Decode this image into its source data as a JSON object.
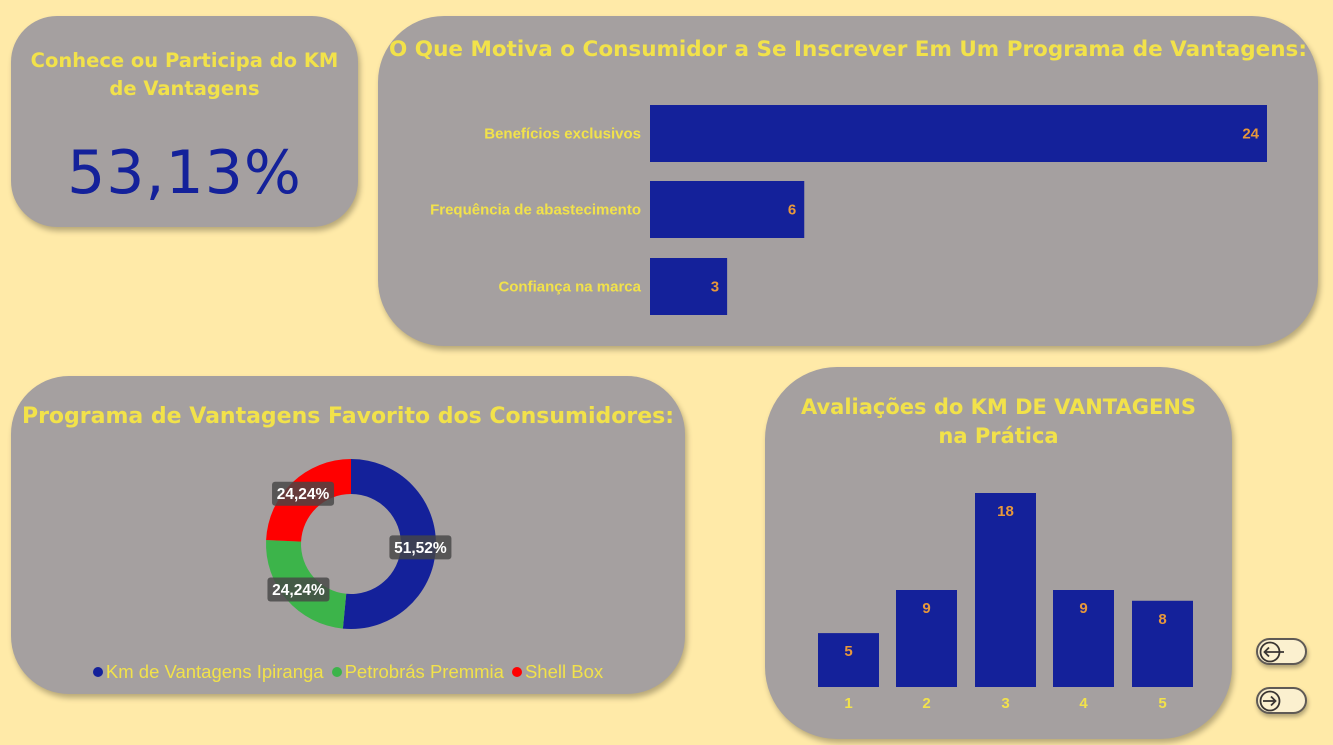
{
  "kpi": {
    "title": "Conhece ou Participa do KM de Vantagens",
    "value": "53,13%"
  },
  "motivation": {
    "title": "O Que Motiva o Consumidor a Se Inscrever Em Um Programa de Vantagens:"
  },
  "favorite": {
    "title": "Programa de Vantagens Favorito dos Consumidores:",
    "legend": [
      {
        "label": "Km de Vantagens Ipiranga",
        "color": "#14219a"
      },
      {
        "label": "Petrobrás Premmia",
        "color": "#3cb44a"
      },
      {
        "label": "Shell Box",
        "color": "#ff0000"
      }
    ]
  },
  "ratings": {
    "title": "Avaliações do KM DE VANTAGENS na Prática"
  },
  "nav": {
    "back_icon": "arrow-left-icon",
    "next_icon": "arrow-right-icon"
  },
  "colors": {
    "background": "#ffeaa8",
    "card": "#a5a0a0",
    "bar": "#14219a",
    "title": "#f2e24a",
    "bar_label": "#e8983a"
  },
  "chart_data": [
    {
      "type": "bar",
      "orientation": "horizontal",
      "title": "O Que Motiva o Consumidor a Se Inscrever Em Um Programa de Vantagens:",
      "categories": [
        "Benefícios exclusivos",
        "Frequência de abastecimento",
        "Confiança na marca"
      ],
      "values": [
        24,
        6,
        3
      ],
      "data_labels": true,
      "xlim": [
        0,
        24
      ]
    },
    {
      "type": "pie",
      "variant": "donut",
      "title": "Programa de Vantagens Favorito dos Consumidores:",
      "categories": [
        "Km de Vantagens Ipiranga",
        "Petrobrás Premmia",
        "Shell Box"
      ],
      "values": [
        51.52,
        24.24,
        24.24
      ],
      "labels": [
        "51,52%",
        "24,24%",
        "24,24%"
      ],
      "colors": [
        "#14219a",
        "#3cb44a",
        "#ff0000"
      ],
      "legend": "bottom"
    },
    {
      "type": "bar",
      "title": "Avaliações do KM DE VANTAGENS na Prática",
      "categories": [
        "1",
        "2",
        "3",
        "4",
        "5"
      ],
      "values": [
        5,
        9,
        18,
        9,
        8
      ],
      "data_labels": true,
      "ylim": [
        0,
        18
      ]
    }
  ]
}
